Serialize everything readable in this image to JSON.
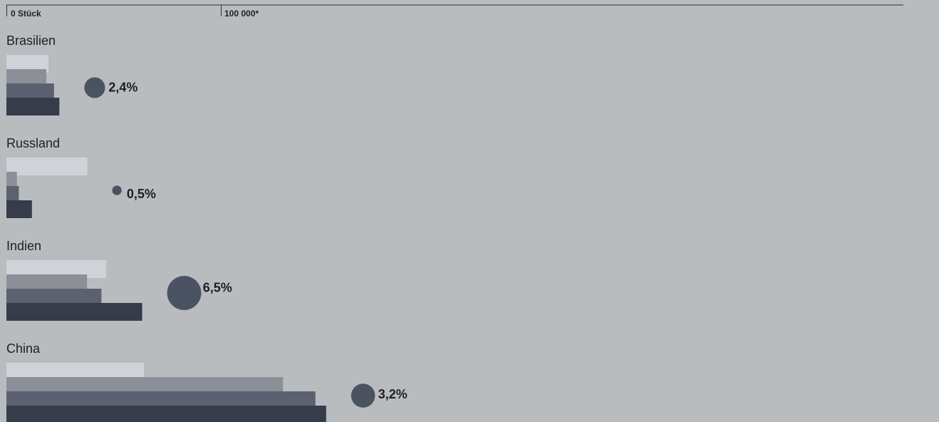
{
  "chart_data": {
    "type": "bar",
    "scale": {
      "min_label": "0 Stück",
      "max_label": "100 000*",
      "max_value": 100000
    },
    "series": [
      {
        "values": [
          19600,
          37700,
          46500,
          64100
        ]
      },
      {
        "values": [
          18600,
          4900,
          37600,
          129000
        ]
      },
      {
        "values": [
          22200,
          5800,
          44300,
          144100
        ]
      },
      {
        "values": [
          24700,
          11900,
          63300,
          149100
        ]
      }
    ],
    "colors": [
      "#cfd2d8",
      "#8b9098",
      "#5b6170",
      "#363c4a"
    ],
    "bubble_color": "#4b5262",
    "categories": [
      {
        "name": "Brasilien",
        "percent": "2,4%",
        "percent_value": 2.4
      },
      {
        "name": "Russland",
        "percent": "0,5%",
        "percent_value": 0.5
      },
      {
        "name": "Indien",
        "percent": "6,5%",
        "percent_value": 6.5
      },
      {
        "name": "China",
        "percent": "3,2%",
        "percent_value": 3.2
      }
    ]
  }
}
